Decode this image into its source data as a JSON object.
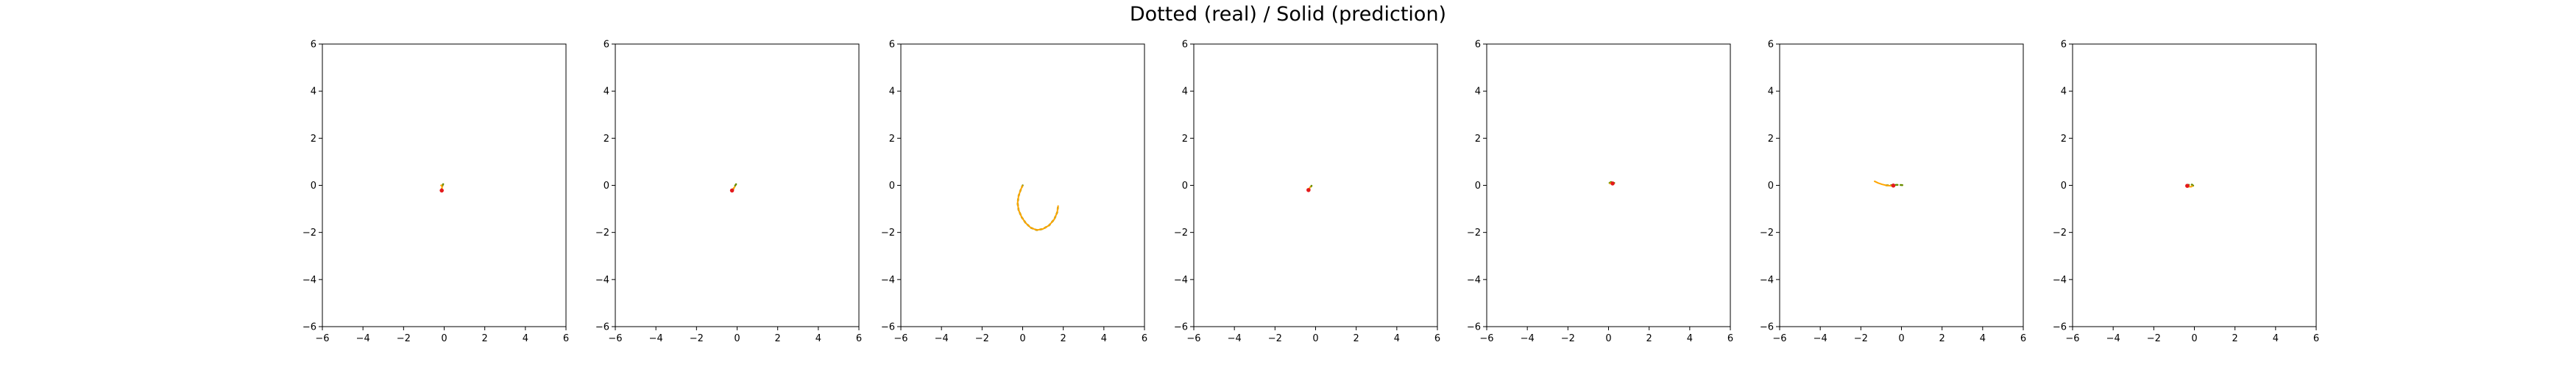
{
  "title": "Dotted (real) / Solid (prediction)",
  "colors": {
    "real": "#6b8e00",
    "prediction": "#ffa500",
    "marker": "#e41a1c",
    "axes": "#000000"
  },
  "chart_data": [
    {
      "type": "line",
      "xlim": [
        -6,
        6
      ],
      "ylim": [
        -6,
        6
      ],
      "xticks": [
        -6,
        -4,
        -2,
        0,
        2,
        4,
        6
      ],
      "yticks": [
        -6,
        -4,
        -2,
        0,
        2,
        4,
        6
      ],
      "grid": false,
      "series": [
        {
          "role": "real",
          "x": [
            -0.05,
            -0.08,
            -0.1,
            -0.12,
            -0.12
          ],
          "y": [
            0.05,
            0.0,
            -0.07,
            -0.15,
            -0.22
          ]
        },
        {
          "role": "prediction",
          "x": [
            -0.18,
            -0.15,
            -0.12,
            -0.1,
            -0.12
          ],
          "y": [
            -0.02,
            0.0,
            -0.02,
            -0.08,
            -0.2
          ]
        }
      ],
      "markers": [
        {
          "x": -0.12,
          "y": -0.22
        }
      ]
    },
    {
      "type": "line",
      "xlim": [
        -6,
        6
      ],
      "ylim": [
        -6,
        6
      ],
      "xticks": [
        -6,
        -4,
        -2,
        0,
        2,
        4,
        6
      ],
      "yticks": [
        -6,
        -4,
        -2,
        0,
        2,
        4,
        6
      ],
      "grid": false,
      "series": [
        {
          "role": "real",
          "x": [
            -0.05,
            -0.1,
            -0.15,
            -0.2,
            -0.25
          ],
          "y": [
            0.05,
            -0.02,
            -0.1,
            -0.17,
            -0.22
          ]
        },
        {
          "role": "prediction",
          "x": [
            -0.1,
            -0.15,
            -0.2,
            -0.25
          ],
          "y": [
            -0.05,
            -0.1,
            -0.17,
            -0.22
          ]
        }
      ],
      "markers": [
        {
          "x": -0.25,
          "y": -0.22
        }
      ]
    },
    {
      "type": "line",
      "xlim": [
        -6,
        6
      ],
      "ylim": [
        -6,
        6
      ],
      "xticks": [
        -6,
        -4,
        -2,
        0,
        2,
        4,
        6
      ],
      "yticks": [
        -6,
        -4,
        -2,
        0,
        2,
        4,
        6
      ],
      "grid": false,
      "series": [
        {
          "role": "real",
          "x": [
            0.0,
            -0.1,
            -0.2,
            -0.25,
            -0.2,
            -0.05,
            0.15,
            0.4,
            0.7,
            1.0,
            1.3,
            1.55,
            1.7,
            1.75
          ],
          "y": [
            0.0,
            -0.2,
            -0.45,
            -0.75,
            -1.05,
            -1.35,
            -1.6,
            -1.8,
            -1.9,
            -1.85,
            -1.7,
            -1.45,
            -1.15,
            -0.85
          ]
        },
        {
          "role": "prediction",
          "x": [
            0.0,
            -0.1,
            -0.2,
            -0.25,
            -0.2,
            -0.05,
            0.15,
            0.4,
            0.7,
            1.0,
            1.3,
            1.55,
            1.7,
            1.75
          ],
          "y": [
            0.0,
            -0.2,
            -0.45,
            -0.75,
            -1.05,
            -1.35,
            -1.6,
            -1.8,
            -1.9,
            -1.85,
            -1.7,
            -1.45,
            -1.15,
            -0.85
          ]
        }
      ],
      "markers": []
    },
    {
      "type": "line",
      "xlim": [
        -6,
        6
      ],
      "ylim": [
        -6,
        6
      ],
      "xticks": [
        -6,
        -4,
        -2,
        0,
        2,
        4,
        6
      ],
      "yticks": [
        -6,
        -4,
        -2,
        0,
        2,
        4,
        6
      ],
      "grid": false,
      "series": [
        {
          "role": "real",
          "x": [
            -0.35,
            -0.3,
            -0.25,
            -0.2
          ],
          "y": [
            -0.22,
            -0.15,
            -0.08,
            -0.02
          ]
        },
        {
          "role": "prediction",
          "x": [
            -0.35,
            -0.3,
            -0.25
          ],
          "y": [
            -0.2,
            -0.12,
            -0.05
          ]
        }
      ],
      "markers": [
        {
          "x": -0.35,
          "y": -0.2
        }
      ]
    },
    {
      "type": "line",
      "xlim": [
        -6,
        6
      ],
      "ylim": [
        -6,
        6
      ],
      "xticks": [
        -6,
        -4,
        -2,
        0,
        2,
        4,
        6
      ],
      "yticks": [
        -6,
        -4,
        -2,
        0,
        2,
        4,
        6
      ],
      "grid": false,
      "series": [
        {
          "role": "real",
          "x": [
            0.05,
            0.12,
            0.2,
            0.28
          ],
          "y": [
            0.1,
            0.14,
            0.13,
            0.1
          ]
        },
        {
          "role": "prediction",
          "x": [
            0.05,
            0.12,
            0.2,
            0.28
          ],
          "y": [
            0.06,
            0.1,
            0.1,
            0.07
          ]
        }
      ],
      "markers": [
        {
          "x": 0.2,
          "y": 0.08
        }
      ]
    },
    {
      "type": "line",
      "xlim": [
        -6,
        6
      ],
      "ylim": [
        -6,
        6
      ],
      "xticks": [
        -6,
        -4,
        -2,
        0,
        2,
        4,
        6
      ],
      "yticks": [
        -6,
        -4,
        -2,
        0,
        2,
        4,
        6
      ],
      "grid": false,
      "series": [
        {
          "role": "real",
          "x": [
            -0.75,
            -0.55,
            -0.35,
            -0.15,
            0.05,
            0.15
          ],
          "y": [
            0.0,
            0.0,
            0.02,
            0.02,
            0.01,
            0.0
          ]
        },
        {
          "role": "prediction",
          "x": [
            -1.35,
            -1.15,
            -0.95,
            -0.75,
            -0.55,
            -0.4
          ],
          "y": [
            0.18,
            0.1,
            0.04,
            0.0,
            -0.02,
            -0.02
          ]
        }
      ],
      "markers": [
        {
          "x": -0.4,
          "y": -0.01
        }
      ]
    },
    {
      "type": "line",
      "xlim": [
        -6,
        6
      ],
      "ylim": [
        -6,
        6
      ],
      "xticks": [
        -6,
        -4,
        -2,
        0,
        2,
        4,
        6
      ],
      "yticks": [
        -6,
        -4,
        -2,
        0,
        2,
        4,
        6
      ],
      "grid": false,
      "series": [
        {
          "role": "real",
          "x": [
            -0.35,
            -0.25,
            -0.12,
            -0.05
          ],
          "y": [
            -0.02,
            0.03,
            0.03,
            -0.02
          ]
        },
        {
          "role": "prediction",
          "x": [
            -0.35,
            -0.28,
            -0.15,
            -0.08
          ],
          "y": [
            -0.02,
            -0.06,
            -0.06,
            -0.02
          ]
        }
      ],
      "markers": [
        {
          "x": -0.35,
          "y": -0.02
        }
      ]
    }
  ]
}
